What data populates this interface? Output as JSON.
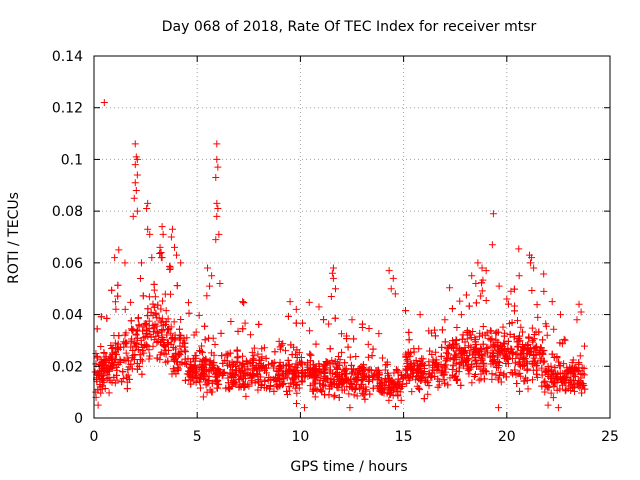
{
  "chart_data": {
    "type": "scatter",
    "title": "Day 068 of 2018, Rate Of TEC Index for receiver mtsr",
    "xlabel": "GPS time / hours",
    "ylabel": "ROTI / TECUs",
    "xlim": [
      0,
      25
    ],
    "ylim": [
      0,
      0.14
    ],
    "xticks": [
      0,
      5,
      10,
      15,
      20,
      25
    ],
    "xtick_labels": [
      "0",
      "5",
      "10",
      "15",
      "20",
      "25"
    ],
    "yticks": [
      0,
      0.02,
      0.04,
      0.06,
      0.08,
      0.1,
      0.12,
      0.14
    ],
    "ytick_labels": [
      "0",
      "0.02",
      "0.04",
      "0.06",
      "0.08",
      "0.1",
      "0.12",
      "0.14"
    ],
    "grid": true,
    "marker": "+",
    "color": "#ff0000",
    "series": [
      {
        "name": "ROTI",
        "points": [
          [
            0.5,
            0.122
          ],
          [
            2.0,
            0.106
          ],
          [
            2.05,
            0.101
          ],
          [
            2.1,
            0.1
          ],
          [
            2.0,
            0.098
          ],
          [
            2.1,
            0.094
          ],
          [
            2.0,
            0.091
          ],
          [
            2.05,
            0.088
          ],
          [
            1.95,
            0.085
          ],
          [
            2.1,
            0.08
          ],
          [
            1.9,
            0.078
          ],
          [
            2.6,
            0.083
          ],
          [
            2.55,
            0.081
          ],
          [
            2.6,
            0.073
          ],
          [
            2.7,
            0.071
          ],
          [
            3.3,
            0.074
          ],
          [
            3.35,
            0.071
          ],
          [
            3.2,
            0.066
          ],
          [
            3.25,
            0.064
          ],
          [
            3.3,
            0.062
          ],
          [
            3.8,
            0.073
          ],
          [
            3.75,
            0.07
          ],
          [
            3.9,
            0.066
          ],
          [
            3.7,
            0.058
          ],
          [
            5.95,
            0.106
          ],
          [
            5.95,
            0.1
          ],
          [
            6.0,
            0.097
          ],
          [
            5.9,
            0.093
          ],
          [
            5.95,
            0.083
          ],
          [
            6.0,
            0.081
          ],
          [
            5.95,
            0.078
          ],
          [
            6.05,
            0.071
          ],
          [
            5.9,
            0.069
          ],
          [
            1.2,
            0.065
          ],
          [
            1.0,
            0.062
          ],
          [
            1.5,
            0.06
          ],
          [
            2.3,
            0.06
          ],
          [
            2.8,
            0.062
          ],
          [
            4.2,
            0.06
          ],
          [
            4.0,
            0.063
          ],
          [
            5.5,
            0.058
          ],
          [
            5.7,
            0.055
          ],
          [
            5.6,
            0.051
          ],
          [
            6.1,
            0.052
          ],
          [
            11.6,
            0.058
          ],
          [
            11.55,
            0.056
          ],
          [
            11.6,
            0.054
          ],
          [
            11.7,
            0.05
          ],
          [
            11.5,
            0.047
          ],
          [
            14.3,
            0.057
          ],
          [
            14.5,
            0.054
          ],
          [
            14.4,
            0.05
          ],
          [
            14.6,
            0.048
          ],
          [
            18.3,
            0.055
          ],
          [
            18.5,
            0.052
          ],
          [
            18.6,
            0.06
          ],
          [
            18.8,
            0.058
          ],
          [
            19.0,
            0.057
          ],
          [
            19.35,
            0.079
          ],
          [
            19.3,
            0.067
          ],
          [
            21.1,
            0.063
          ],
          [
            21.2,
            0.062
          ],
          [
            21.15,
            0.06
          ],
          [
            21.3,
            0.058
          ],
          [
            20.6,
            0.055
          ],
          [
            20.2,
            0.049
          ],
          [
            20.0,
            0.046
          ],
          [
            23.5,
            0.044
          ],
          [
            23.6,
            0.041
          ],
          [
            23.4,
            0.038
          ],
          [
            0.2,
            0.005
          ],
          [
            0.1,
            0.008
          ],
          [
            0.3,
            0.012
          ],
          [
            7.2,
            0.045
          ],
          [
            9.5,
            0.045
          ],
          [
            9.8,
            0.042
          ],
          [
            10.9,
            0.043
          ],
          [
            12.5,
            0.038
          ],
          [
            13.0,
            0.035
          ],
          [
            15.8,
            0.04
          ],
          [
            16.5,
            0.034
          ],
          [
            17.0,
            0.038
          ],
          [
            17.8,
            0.04
          ],
          [
            22.2,
            0.045
          ],
          [
            22.6,
            0.04
          ],
          [
            19.6,
            0.004
          ],
          [
            22.0,
            0.005
          ],
          [
            22.5,
            0.004
          ],
          [
            12.4,
            0.004
          ],
          [
            10.2,
            0.004
          ]
        ]
      }
    ]
  }
}
